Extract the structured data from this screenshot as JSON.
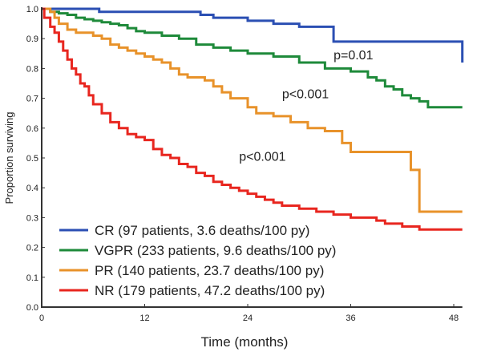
{
  "chart_data": {
    "type": "line",
    "step": true,
    "title": "",
    "xlabel": "Time (months)",
    "ylabel": "Proportion surviving",
    "xlim": [
      0,
      49
    ],
    "ylim": [
      0,
      1.0
    ],
    "xticks": [
      0,
      12,
      24,
      36,
      48
    ],
    "yticks": [
      0.0,
      0.1,
      0.2,
      0.3,
      0.4,
      0.5,
      0.6,
      0.7,
      0.8,
      0.9,
      1.0
    ],
    "ytick_labels": [
      "0.0",
      "0.1",
      "0.2",
      "0.3",
      "0.4",
      "0.5",
      "0.6",
      "0.7",
      "0.8",
      "0.9",
      "1.0"
    ],
    "grid": false,
    "legend_position": "bottom-left",
    "series": [
      {
        "name": "CR (97 patients, 3.6 deaths/100 py)",
        "color": "#2b4fb3",
        "x": [
          0,
          5.5,
          6.7,
          15,
          18.5,
          20,
          24,
          27,
          30,
          34,
          40,
          46,
          48,
          49
        ],
        "y": [
          1.0,
          1.0,
          0.99,
          0.99,
          0.98,
          0.97,
          0.96,
          0.95,
          0.94,
          0.89,
          0.89,
          0.89,
          0.89,
          0.82
        ]
      },
      {
        "name": "VGPR (233 patients, 9.6 deaths/100 py)",
        "color": "#1e8a3a",
        "x": [
          0,
          1,
          2,
          3,
          4,
          5,
          6,
          7,
          8,
          9,
          10,
          11,
          12,
          14,
          16,
          18,
          20,
          22,
          24,
          27,
          30,
          33,
          36,
          37,
          38,
          39,
          40,
          41,
          42,
          43,
          44,
          45,
          49
        ],
        "y": [
          1.0,
          0.99,
          0.985,
          0.98,
          0.97,
          0.965,
          0.96,
          0.955,
          0.95,
          0.945,
          0.935,
          0.925,
          0.92,
          0.91,
          0.9,
          0.88,
          0.87,
          0.86,
          0.85,
          0.84,
          0.82,
          0.8,
          0.79,
          0.79,
          0.77,
          0.76,
          0.74,
          0.73,
          0.71,
          0.7,
          0.69,
          0.67,
          0.67
        ]
      },
      {
        "name": "PR (140 patients, 23.7 deaths/100 py)",
        "color": "#e8922a",
        "x": [
          0,
          1,
          1.5,
          2,
          3,
          4,
          5,
          6,
          7,
          8,
          9,
          10,
          11,
          12,
          13,
          14,
          15,
          16,
          17,
          18,
          19,
          20,
          21,
          22,
          24,
          25,
          27,
          29,
          31,
          33,
          35,
          36,
          40,
          43,
          44,
          49
        ],
        "y": [
          1.0,
          0.99,
          0.97,
          0.95,
          0.93,
          0.92,
          0.92,
          0.91,
          0.9,
          0.88,
          0.87,
          0.86,
          0.85,
          0.84,
          0.83,
          0.82,
          0.8,
          0.78,
          0.77,
          0.77,
          0.76,
          0.74,
          0.72,
          0.7,
          0.67,
          0.65,
          0.64,
          0.62,
          0.6,
          0.59,
          0.55,
          0.52,
          0.52,
          0.46,
          0.32,
          0.32
        ]
      },
      {
        "name": "NR (179 patients, 47.2 deaths/100 py)",
        "color": "#e8261f",
        "x": [
          0,
          0.3,
          1,
          1.5,
          2,
          2.5,
          3,
          3.5,
          4,
          4.5,
          5,
          5.5,
          6,
          7,
          8,
          9,
          10,
          11,
          12,
          13,
          14,
          15,
          16,
          17,
          18,
          19,
          20,
          21,
          22,
          23,
          24,
          25,
          26,
          27,
          28,
          30,
          32,
          34,
          36,
          38,
          39,
          40,
          41,
          42,
          44,
          49
        ],
        "y": [
          1.0,
          0.97,
          0.94,
          0.92,
          0.89,
          0.86,
          0.83,
          0.8,
          0.78,
          0.75,
          0.74,
          0.71,
          0.68,
          0.65,
          0.62,
          0.6,
          0.58,
          0.57,
          0.56,
          0.53,
          0.51,
          0.5,
          0.48,
          0.47,
          0.45,
          0.44,
          0.42,
          0.41,
          0.4,
          0.39,
          0.38,
          0.37,
          0.36,
          0.35,
          0.34,
          0.33,
          0.32,
          0.31,
          0.3,
          0.3,
          0.29,
          0.28,
          0.28,
          0.27,
          0.26,
          0.26
        ]
      }
    ],
    "annotations": [
      {
        "text": "p=0.01",
        "x": 34,
        "y": 0.83
      },
      {
        "text": "p<0.001",
        "x": 28,
        "y": 0.7
      },
      {
        "text": "p<0.001",
        "x": 23,
        "y": 0.49
      }
    ]
  }
}
